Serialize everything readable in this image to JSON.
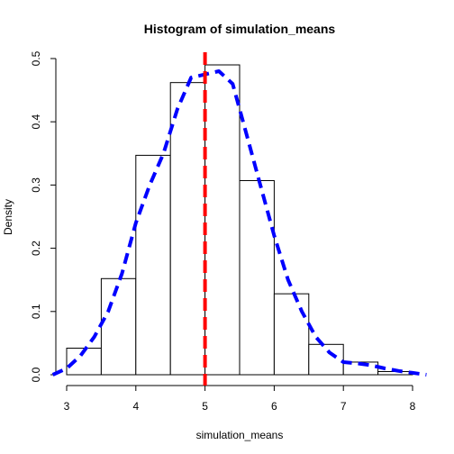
{
  "chart_data": {
    "type": "bar",
    "title": "Histogram of simulation_means",
    "xlabel": "simulation_means",
    "ylabel": "Density",
    "xlim": [
      2.8,
      8.2
    ],
    "ylim": [
      0,
      0.5
    ],
    "x_ticks": [
      "3",
      "4",
      "5",
      "6",
      "7",
      "8"
    ],
    "y_ticks": [
      "0.0",
      "0.1",
      "0.2",
      "0.3",
      "0.4",
      "0.5"
    ],
    "bins": [
      {
        "start": 3.0,
        "end": 3.5,
        "density": 0.042
      },
      {
        "start": 3.5,
        "end": 4.0,
        "density": 0.152
      },
      {
        "start": 4.0,
        "end": 4.5,
        "density": 0.347
      },
      {
        "start": 4.5,
        "end": 5.0,
        "density": 0.462
      },
      {
        "start": 5.0,
        "end": 5.5,
        "density": 0.49
      },
      {
        "start": 5.5,
        "end": 6.0,
        "density": 0.307
      },
      {
        "start": 6.0,
        "end": 6.5,
        "density": 0.128
      },
      {
        "start": 6.5,
        "end": 7.0,
        "density": 0.048
      },
      {
        "start": 7.0,
        "end": 7.5,
        "density": 0.02
      },
      {
        "start": 7.5,
        "end": 8.0,
        "density": 0.005
      }
    ],
    "density_curve": {
      "color": "#0000ff",
      "style": "dashed",
      "points": [
        [
          2.8,
          0.0
        ],
        [
          3.0,
          0.01
        ],
        [
          3.2,
          0.03
        ],
        [
          3.4,
          0.06
        ],
        [
          3.6,
          0.1
        ],
        [
          3.8,
          0.16
        ],
        [
          4.0,
          0.24
        ],
        [
          4.2,
          0.3
        ],
        [
          4.4,
          0.35
        ],
        [
          4.6,
          0.42
        ],
        [
          4.8,
          0.47
        ],
        [
          5.0,
          0.475
        ],
        [
          5.2,
          0.48
        ],
        [
          5.4,
          0.46
        ],
        [
          5.6,
          0.38
        ],
        [
          5.8,
          0.3
        ],
        [
          6.0,
          0.22
        ],
        [
          6.2,
          0.15
        ],
        [
          6.4,
          0.1
        ],
        [
          6.6,
          0.06
        ],
        [
          6.8,
          0.035
        ],
        [
          7.0,
          0.02
        ],
        [
          7.2,
          0.018
        ],
        [
          7.4,
          0.015
        ],
        [
          7.6,
          0.01
        ],
        [
          7.8,
          0.006
        ],
        [
          8.0,
          0.003
        ],
        [
          8.2,
          0.0
        ]
      ]
    },
    "mean_line": {
      "x": 5.0,
      "color": "#ff0000",
      "style": "dashed"
    }
  }
}
